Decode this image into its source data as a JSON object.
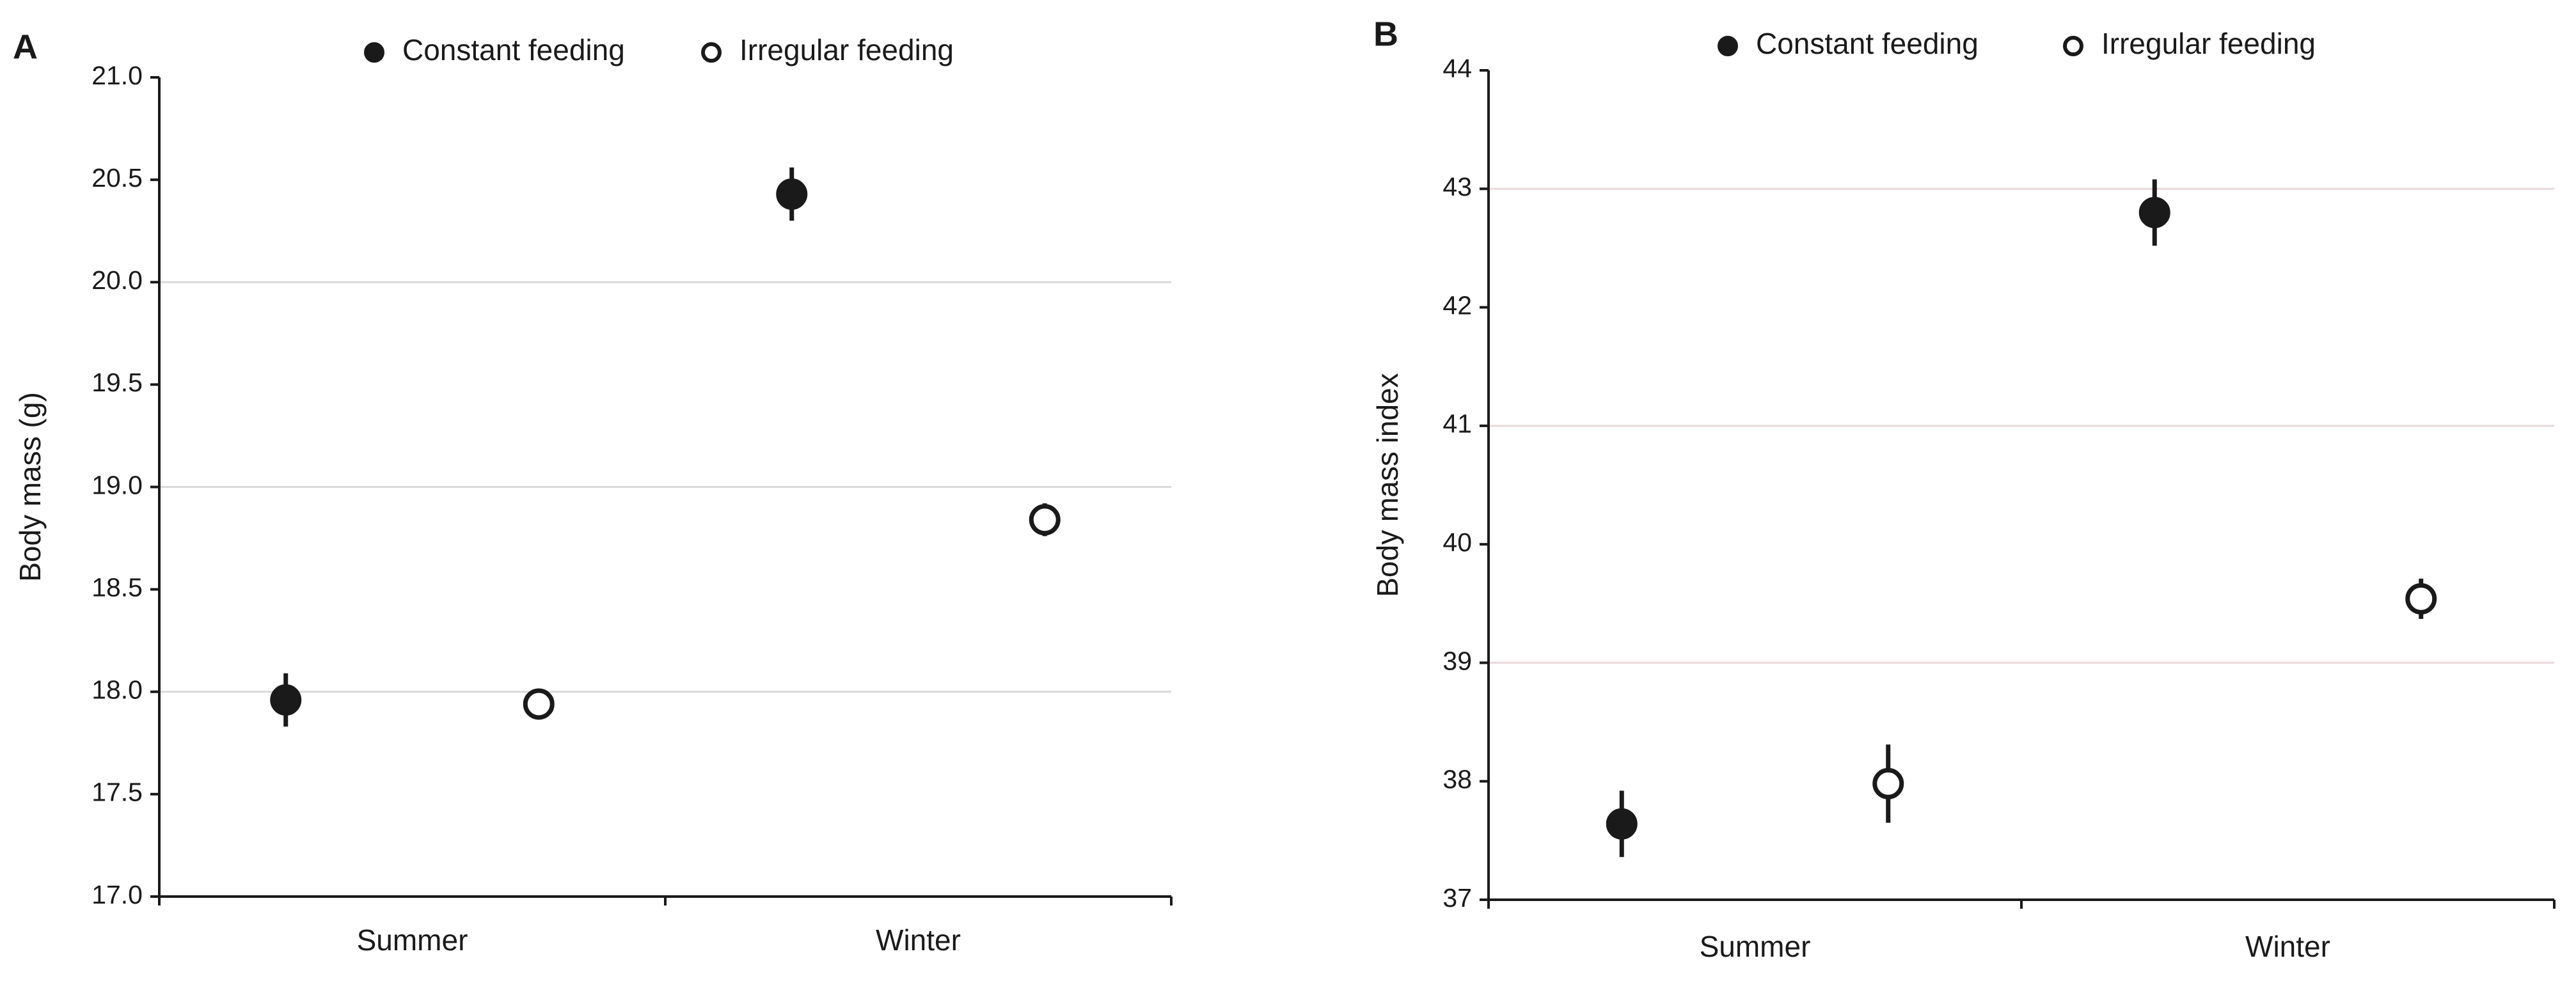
{
  "chart_data": [
    {
      "type": "dot",
      "panel_label": "A",
      "y_label": "Body mass (g)",
      "categories": [
        "Summer",
        "Winter"
      ],
      "series": [
        {
          "name": "Constant feeding",
          "color": "#1a1a1a",
          "filled": true,
          "values": [
            17.96,
            20.43
          ],
          "errors": [
            0.13,
            0.13
          ]
        },
        {
          "name": "Irregular feeding",
          "color": "#1a1a1a",
          "filled": false,
          "values": [
            17.94,
            18.84
          ],
          "errors": [
            0.05,
            0.08
          ]
        }
      ],
      "ylim": [
        17,
        21
      ],
      "yticks": [
        {
          "value": 17,
          "label": "17.0"
        },
        17.5,
        {
          "value": 18,
          "label": "18.0"
        },
        18.5,
        {
          "value": 19,
          "label": "19.0"
        },
        19.5,
        {
          "value": 20,
          "label": "20.0"
        },
        20.5,
        {
          "value": 21,
          "label": "21.0"
        }
      ],
      "grid": true,
      "grid_color": "#d9d9d9"
    },
    {
      "type": "dot",
      "panel_label": "B",
      "y_label": "Body mass index",
      "categories": [
        "Summer",
        "Winter"
      ],
      "series": [
        {
          "name": "Constant feeding",
          "color": "#1a1a1a",
          "filled": true,
          "values": [
            37.64,
            42.8
          ],
          "errors": [
            0.28,
            0.28
          ]
        },
        {
          "name": "Irregular feeding",
          "color": "#1a1a1a",
          "filled": false,
          "values": [
            37.98,
            39.54
          ],
          "errors": [
            0.33,
            0.17
          ]
        }
      ],
      "ylim": [
        37,
        44
      ],
      "yticks": [
        37,
        38,
        39,
        40,
        41,
        42,
        43,
        44
      ],
      "grid": true,
      "grid_color": "#ead9db"
    }
  ]
}
